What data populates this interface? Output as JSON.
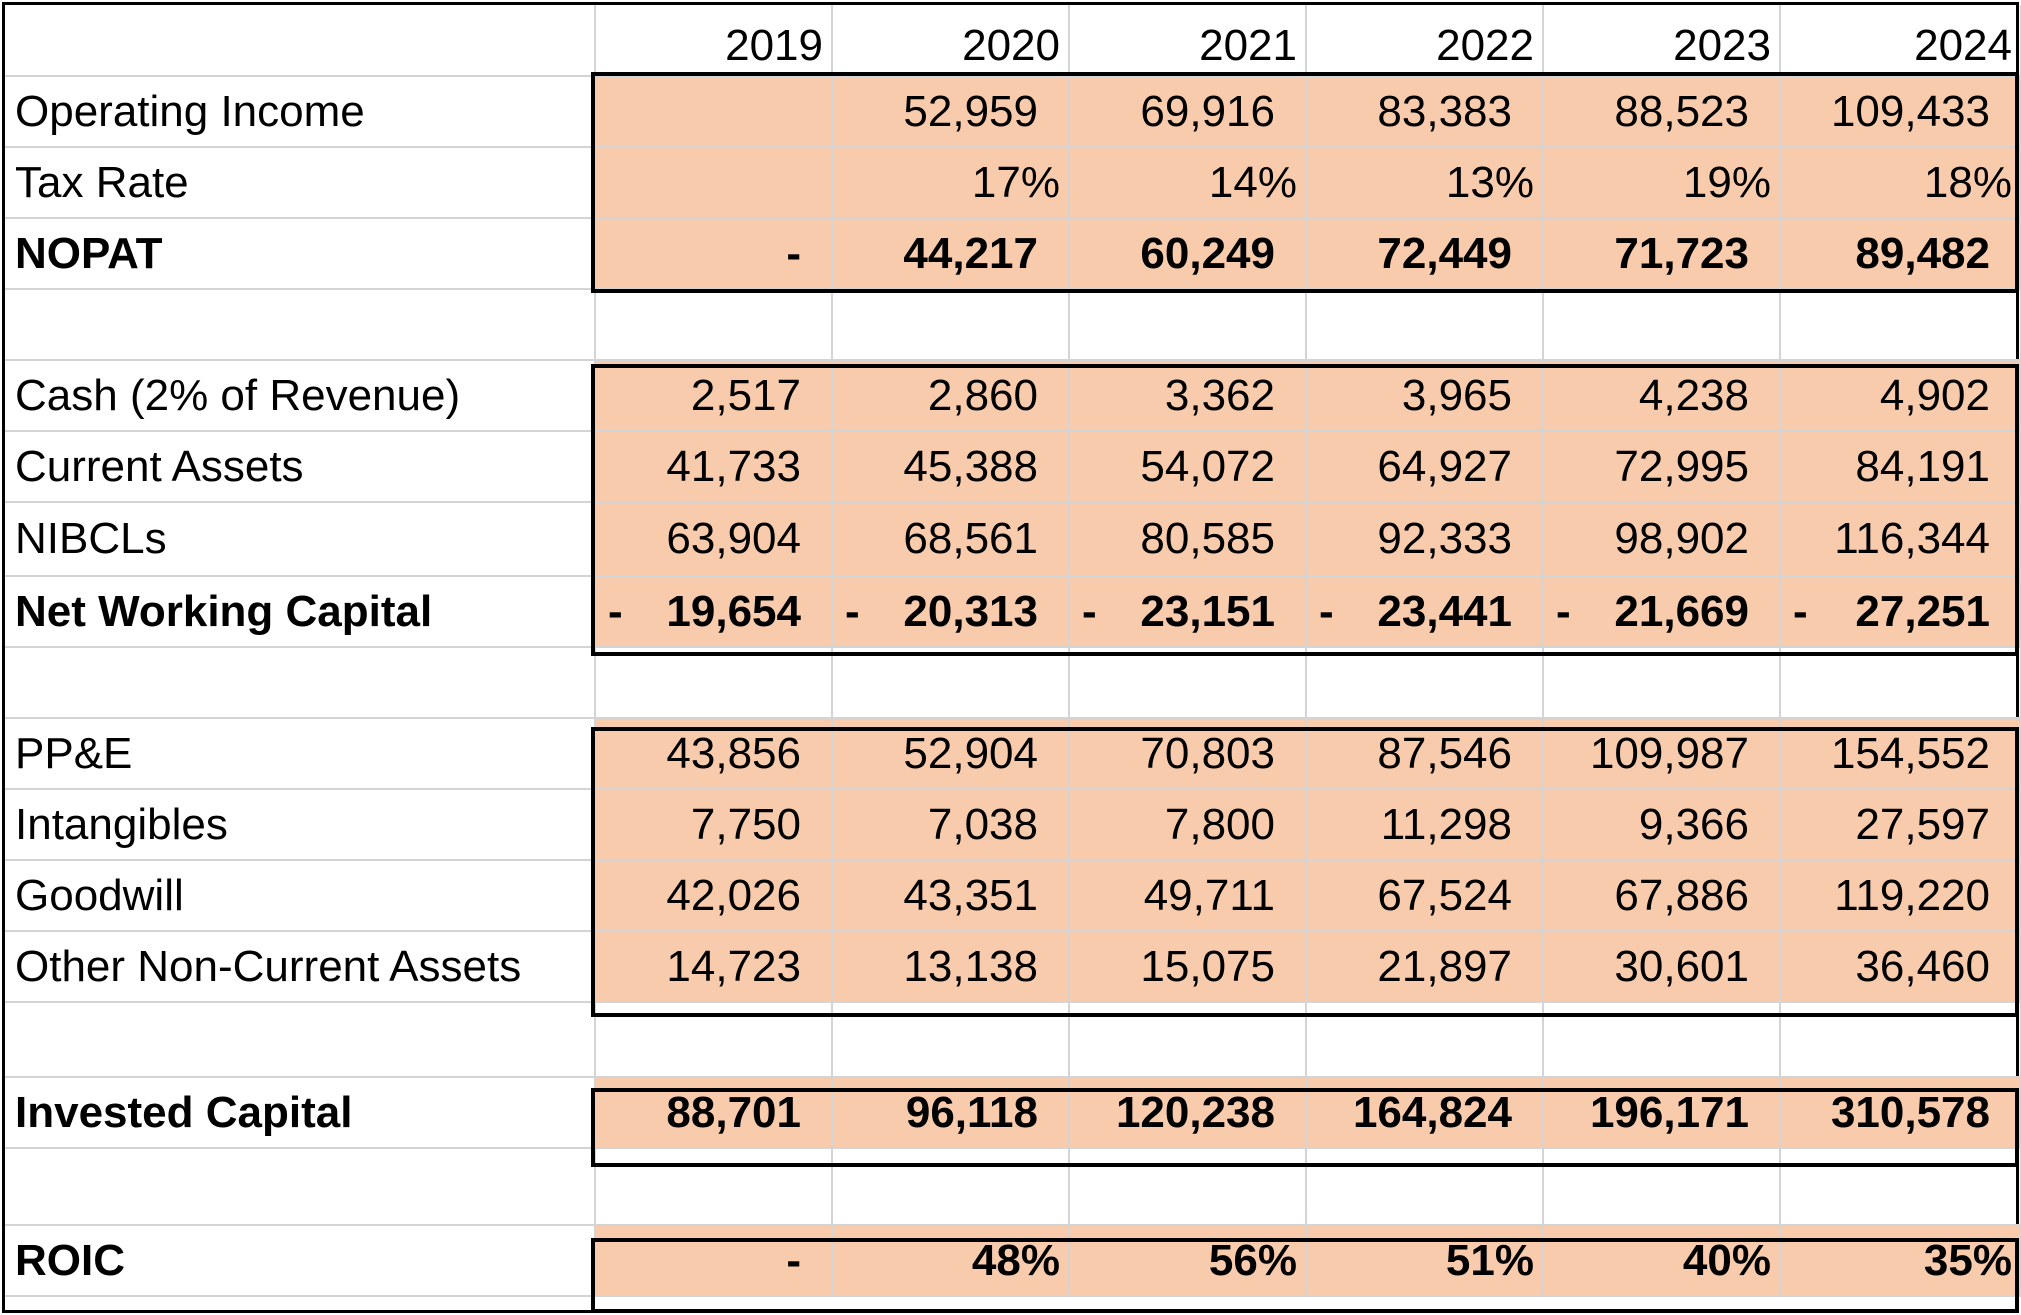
{
  "years": [
    "2019",
    "2020",
    "2021",
    "2022",
    "2023",
    "2024"
  ],
  "rows": {
    "operating_income": {
      "label": "Operating Income",
      "values": [
        "",
        "52,959",
        "69,916",
        "83,383",
        "88,523",
        "109,433"
      ]
    },
    "tax_rate": {
      "label": "Tax Rate",
      "values": [
        "",
        "17%",
        "14%",
        "13%",
        "19%",
        "18%"
      ]
    },
    "nopat": {
      "label": "NOPAT",
      "values": [
        "-",
        "44,217",
        "60,249",
        "72,449",
        "71,723",
        "89,482"
      ]
    },
    "cash": {
      "label": "Cash (2% of Revenue)",
      "values": [
        "2,517",
        "2,860",
        "3,362",
        "3,965",
        "4,238",
        "4,902"
      ]
    },
    "current_assets": {
      "label": "Current Assets",
      "values": [
        "41,733",
        "45,388",
        "54,072",
        "64,927",
        "72,995",
        "84,191"
      ]
    },
    "nibcls": {
      "label": "NIBCLs",
      "values": [
        "63,904",
        "68,561",
        "80,585",
        "92,333",
        "98,902",
        "116,344"
      ]
    },
    "net_working_capital": {
      "label": "Net Working Capital",
      "sign": "-",
      "values": [
        "19,654",
        "20,313",
        "23,151",
        "23,441",
        "21,669",
        "27,251"
      ]
    },
    "ppe": {
      "label": "PP&E",
      "values": [
        "43,856",
        "52,904",
        "70,803",
        "87,546",
        "109,987",
        "154,552"
      ]
    },
    "intangibles": {
      "label": "Intangibles",
      "values": [
        "7,750",
        "7,038",
        "7,800",
        "11,298",
        "9,366",
        "27,597"
      ]
    },
    "goodwill": {
      "label": "Goodwill",
      "values": [
        "42,026",
        "43,351",
        "49,711",
        "67,524",
        "67,886",
        "119,220"
      ]
    },
    "other_nca": {
      "label": "Other Non-Current Assets",
      "values": [
        "14,723",
        "13,138",
        "15,075",
        "21,897",
        "30,601",
        "36,460"
      ]
    },
    "invested_capital": {
      "label": "Invested Capital",
      "values": [
        "88,701",
        "96,118",
        "120,238",
        "164,824",
        "196,171",
        "310,578"
      ]
    },
    "roic": {
      "label": "ROIC",
      "values": [
        "-",
        "48%",
        "56%",
        "51%",
        "40%",
        "35%"
      ]
    }
  },
  "colors": {
    "fill": "#f8cbad",
    "grid": "#d4d4d4",
    "border": "#000000"
  }
}
